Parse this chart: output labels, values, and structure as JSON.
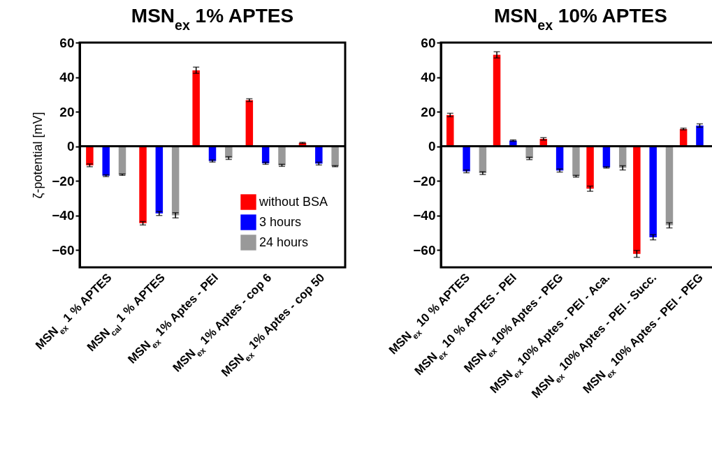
{
  "chart_data": [
    {
      "type": "bar",
      "title": "MSN$_{ex}$ 1% APTES",
      "ylabel": "ζ-potential [mV]",
      "categories": [
        "MSN$_{ex}$ 1 % APTES",
        "MSN$_{cal}$ 1 % APTES",
        "MSN$_{ex}$ 1% Aptes - PEI",
        "MSN$_{ex}$ 1% Aptes - cop 6",
        "MSN$_{ex}$ 1% Aptes - cop 50"
      ],
      "series": [
        {
          "name": "without BSA",
          "color": "#ff0000",
          "values": [
            -11,
            -44.5,
            44,
            26.7,
            2
          ],
          "errors": [
            0.8,
            1,
            1.8,
            0.8,
            0.3
          ]
        },
        {
          "name": "3 hours",
          "color": "#0000ff",
          "values": [
            -17,
            -38.8,
            -8.5,
            -9.8,
            -10
          ],
          "errors": [
            0.5,
            1.2,
            0.6,
            0.6,
            0.8
          ]
        },
        {
          "name": "24 hours",
          "color": "#999999",
          "values": [
            -16.4,
            -39.9,
            -6.8,
            -11,
            -11.5
          ],
          "errors": [
            0.4,
            1.5,
            0.8,
            0.6,
            0.3
          ]
        }
      ],
      "ylim": [
        -70,
        60
      ],
      "yticks": [
        -60,
        -40,
        -20,
        0,
        20,
        40,
        60
      ],
      "legend": "bottom right"
    },
    {
      "type": "bar",
      "title": "MSN$_{ex}$ 10% APTES",
      "categories": [
        "MSN$_{ex}$ 10 % APTES",
        "MSN$_{ex}$ 10 % APTES - PEI",
        "MSN$_{ex}$ 10% Aptes - PEG",
        "MSN$_{ex}$ 10% Aptes - PEI - Aca.",
        "MSN$_{ex}$ 10% Aptes - PEI - Succ.",
        "MSN$_{ex}$ 10% Aptes - PEI - PEG"
      ],
      "series": [
        {
          "color": "#ff0000",
          "values": [
            18.1,
            52.9,
            4.3,
            -24.5,
            -62.2,
            10
          ],
          "errors": [
            1,
            1.8,
            0.7,
            1.5,
            2,
            0.5
          ]
        },
        {
          "color": "#0000ff",
          "values": [
            -14.5,
            3.3,
            -14,
            -12.2,
            -52.6,
            12
          ],
          "errors": [
            0.8,
            0.4,
            0.9,
            0.4,
            1.5,
            1
          ]
        },
        {
          "color": "#999999",
          "values": [
            -15.5,
            -7,
            -17.3,
            -12.5,
            -45.7,
            null
          ],
          "errors": [
            0.8,
            0.7,
            0.5,
            1.2,
            1.5,
            null
          ]
        }
      ],
      "ylim": [
        -70,
        60
      ],
      "yticks": [
        -60,
        -40,
        -20,
        0,
        20,
        40,
        60
      ]
    }
  ]
}
